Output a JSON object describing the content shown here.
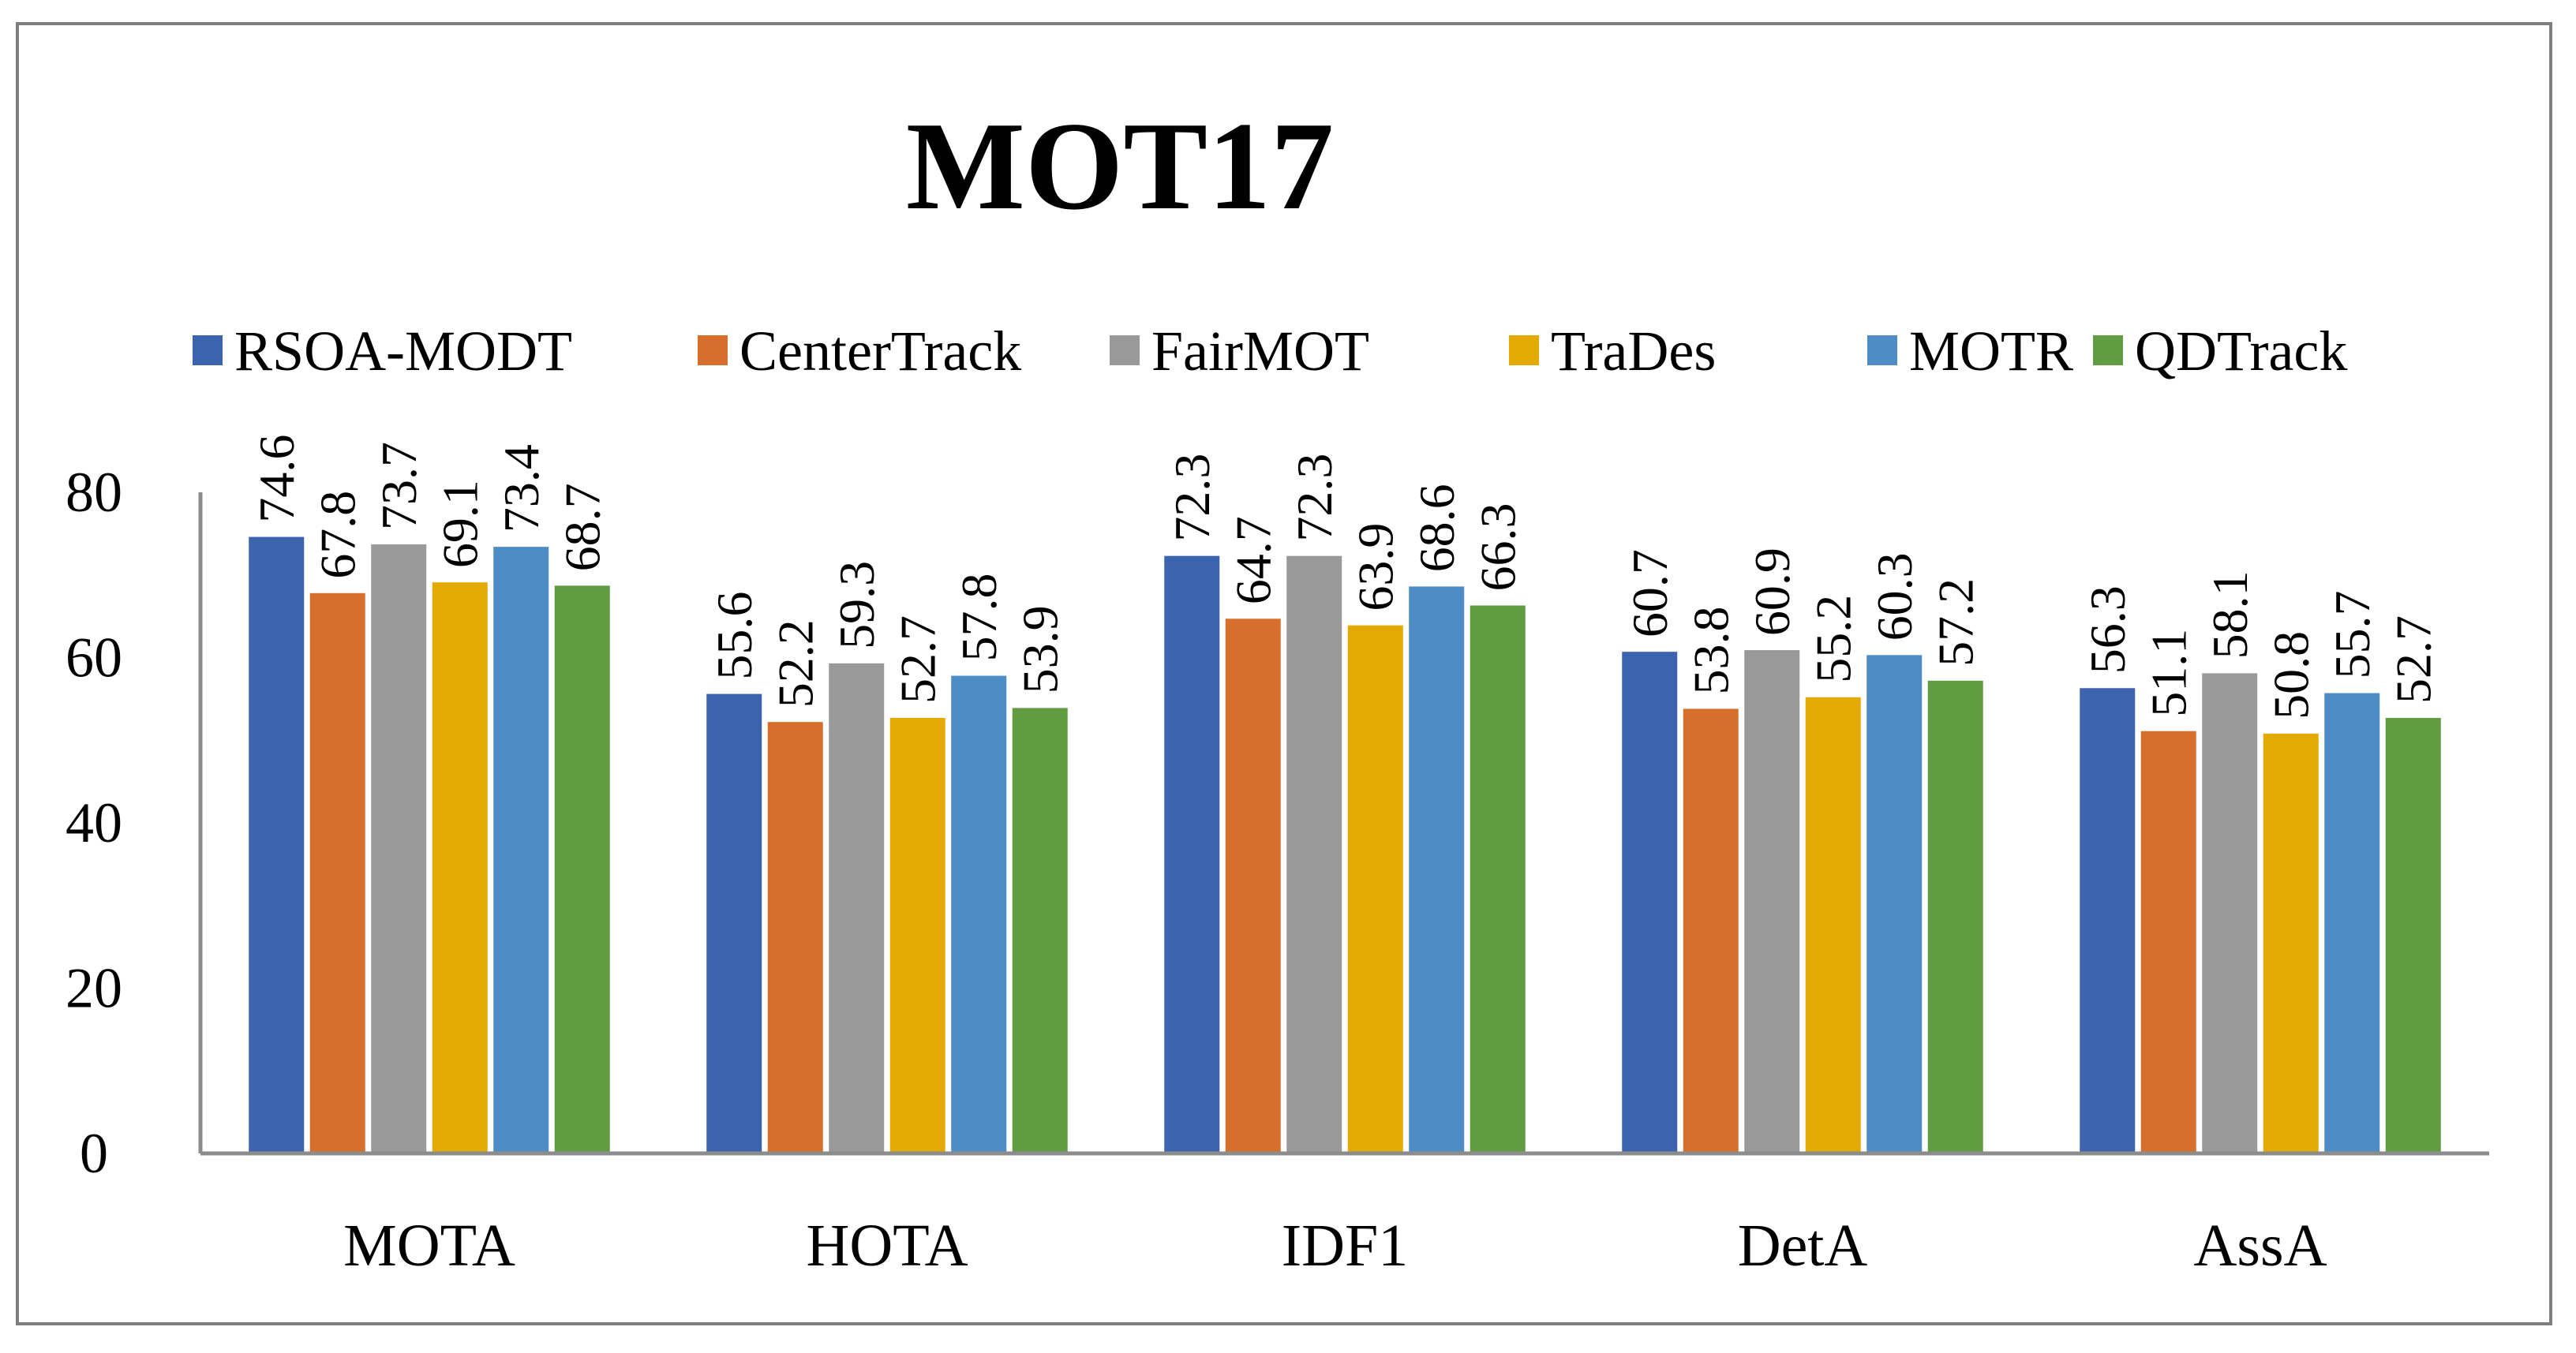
{
  "chart_data": {
    "type": "bar",
    "title": "MOT17",
    "categories": [
      "MOTA",
      "HOTA",
      "IDF1",
      "DetA",
      "AssA"
    ],
    "series": [
      {
        "name": "RSOA-MODT",
        "color": "#3c63ad",
        "values": [
          74.6,
          55.6,
          72.3,
          60.7,
          56.3
        ]
      },
      {
        "name": "CenterTrack",
        "color": "#d56f2b",
        "values": [
          67.8,
          52.2,
          64.7,
          53.8,
          51.1
        ]
      },
      {
        "name": "FairMOT",
        "color": "#999999",
        "values": [
          73.7,
          59.3,
          72.3,
          60.9,
          58.1
        ]
      },
      {
        "name": "TraDes",
        "color": "#e4aa04",
        "values": [
          69.1,
          52.7,
          63.9,
          55.2,
          50.8
        ]
      },
      {
        "name": "MOTR",
        "color": "#4e8cc5",
        "values": [
          73.4,
          57.8,
          68.6,
          60.3,
          55.7
        ]
      },
      {
        "name": "QDTrack",
        "color": "#629c42",
        "values": [
          68.7,
          53.9,
          66.3,
          57.2,
          52.7
        ]
      }
    ],
    "yticks": [
      "0",
      "20",
      "40",
      "60",
      "80"
    ],
    "ylim": [
      0,
      80
    ],
    "xlabel": "",
    "ylabel": "",
    "legend": "top",
    "grid": false
  }
}
